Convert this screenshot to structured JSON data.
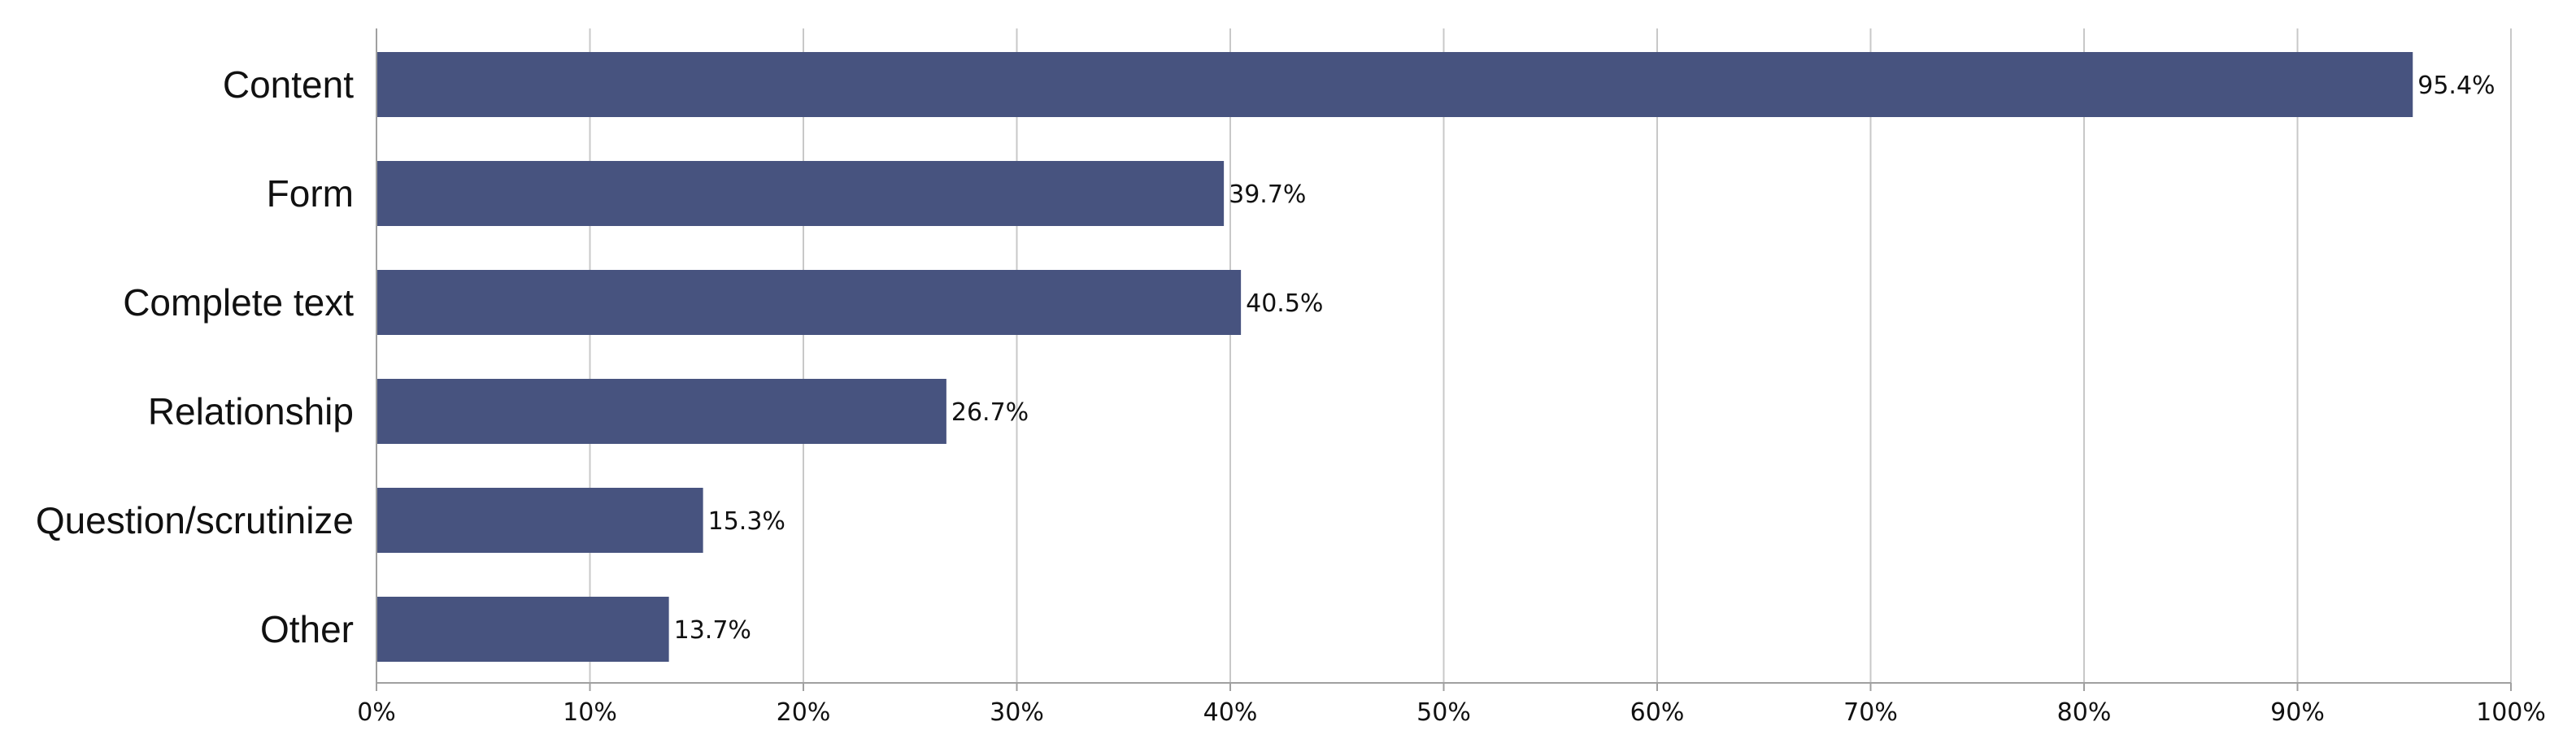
{
  "chart_data": {
    "type": "bar",
    "orientation": "horizontal",
    "title": "",
    "xlabel": "",
    "ylabel": "",
    "categories": [
      "Content",
      "Form",
      "Complete text",
      "Relationship",
      "Question/scrutinize",
      "Other"
    ],
    "values": [
      95.4,
      39.7,
      40.5,
      26.7,
      15.3,
      13.7
    ],
    "data_labels": [
      "95.4%",
      "39.7%",
      "40.5%",
      "26.7%",
      "15.3%",
      "13.7%"
    ],
    "xlim": [
      0,
      100
    ],
    "x_ticks": [
      0,
      10,
      20,
      30,
      40,
      50,
      60,
      70,
      80,
      90,
      100
    ],
    "x_tick_labels": [
      "0%",
      "10%",
      "20%",
      "30%",
      "40%",
      "50%",
      "60%",
      "70%",
      "80%",
      "90%",
      "100%"
    ],
    "grid": true,
    "legend": "none",
    "bar_color": "#47537f",
    "grid_color": "#c8c8c8",
    "axis_color": "#a0a0a0"
  }
}
